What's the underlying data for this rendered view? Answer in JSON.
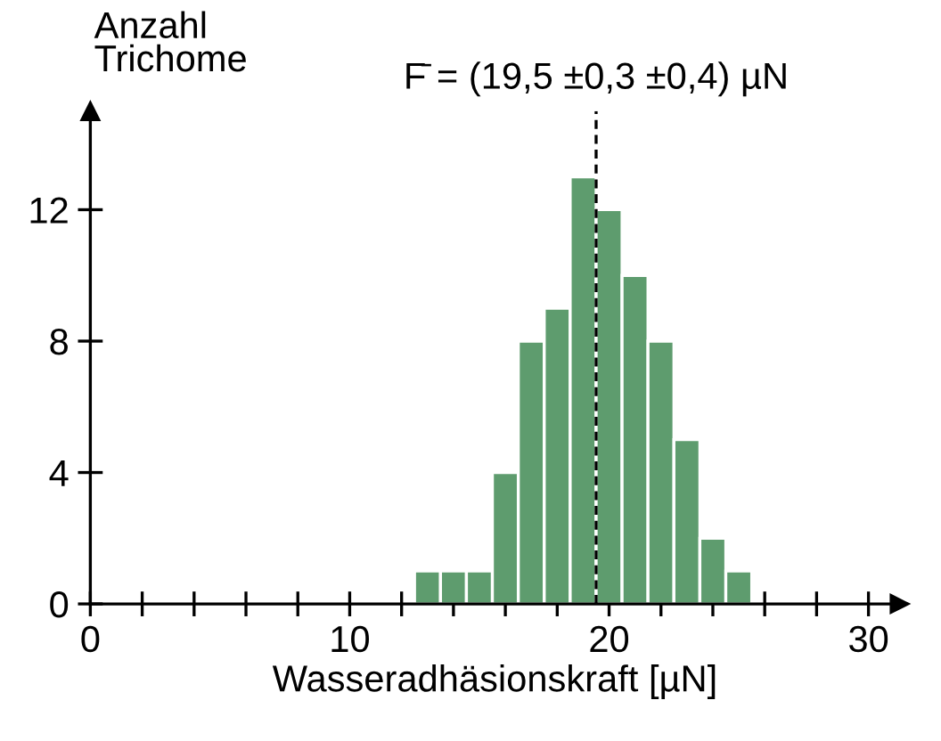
{
  "chart_data": {
    "type": "histogram",
    "xlabel": "Wasseradhäsionskraft [µN]",
    "ylabel": "Anzahl\nTrichome",
    "bins": [
      12.5,
      13.5,
      14.5,
      15.5,
      16.5,
      17.5,
      18.5,
      19.5,
      20.5,
      21.5,
      22.5,
      23.5,
      24.5,
      25.5
    ],
    "values": [
      1,
      1,
      1,
      4,
      8,
      9,
      13,
      12,
      10,
      8,
      5,
      2,
      1
    ],
    "color": "#5e9c6e",
    "xlim": [
      0,
      31.2
    ],
    "ylim": [
      0,
      15
    ],
    "xticks": [
      0,
      {
        "value": 2,
        "label": null
      },
      {
        "value": 4,
        "label": null
      },
      {
        "value": 6,
        "label": null
      },
      {
        "value": 8,
        "label": null
      },
      10,
      {
        "value": 12,
        "label": null
      },
      {
        "value": 14,
        "label": null
      },
      {
        "value": 16,
        "label": null
      },
      {
        "value": 18,
        "label": null
      },
      20,
      {
        "value": 22,
        "label": null
      },
      {
        "value": 24,
        "label": null
      },
      {
        "value": 26,
        "label": null
      },
      {
        "value": 28,
        "label": null
      },
      30
    ],
    "yticks": [
      0,
      4,
      8,
      12
    ],
    "ref_lines": [
      {
        "axis": "x",
        "value": 19.5,
        "label": "F̄ = (19,5 ±0,3 ±0,4) µN",
        "line_style": "dashed",
        "color": "#000000"
      }
    ],
    "grid": false,
    "legend": false
  }
}
